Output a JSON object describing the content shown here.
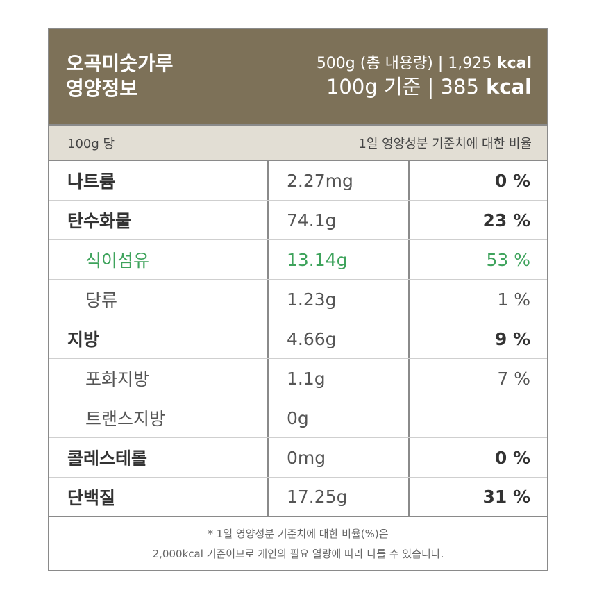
{
  "header": {
    "title_line1": "오곡미숫가루",
    "title_line2": "영양정보",
    "total_amount": "500g (총 내용량)",
    "sep1": " | ",
    "total_kcal_value": "1,925",
    "kcal_unit1": " kcal",
    "base_amount": "100g 기준",
    "sep2": " | ",
    "base_kcal_value": "385",
    "kcal_unit2": " kcal"
  },
  "subheader": {
    "left": "100g 당",
    "right": "1일 영양성분 기준치에 대한 비율"
  },
  "rows": [
    {
      "name": "나트륨",
      "amount": "2.27mg",
      "percent": "0 %"
    },
    {
      "name": "탄수화물",
      "amount": "74.1g",
      "percent": "23 %"
    },
    {
      "name": "식이섬유",
      "amount": "13.14g",
      "percent": "53 %"
    },
    {
      "name": "당류",
      "amount": "1.23g",
      "percent": "1 %"
    },
    {
      "name": "지방",
      "amount": "4.66g",
      "percent": "9 %"
    },
    {
      "name": "포화지방",
      "amount": "1.1g",
      "percent": "7 %"
    },
    {
      "name": "트랜스지방",
      "amount": "0g",
      "percent": ""
    },
    {
      "name": "콜레스테롤",
      "amount": "0mg",
      "percent": "0 %"
    },
    {
      "name": "단백질",
      "amount": "17.25g",
      "percent": "31 %"
    }
  ],
  "footnote": {
    "line1": "* 1일 영양성분 기준치에 대한 비율(%)은",
    "line2": "2,000kcal 기준이므로 개인의 필요 열량에 따라 다를 수 있습니다."
  },
  "colors": {
    "header_bg": "#7d7158",
    "subheader_bg": "#e2ded4",
    "highlight": "#3ea35c"
  }
}
